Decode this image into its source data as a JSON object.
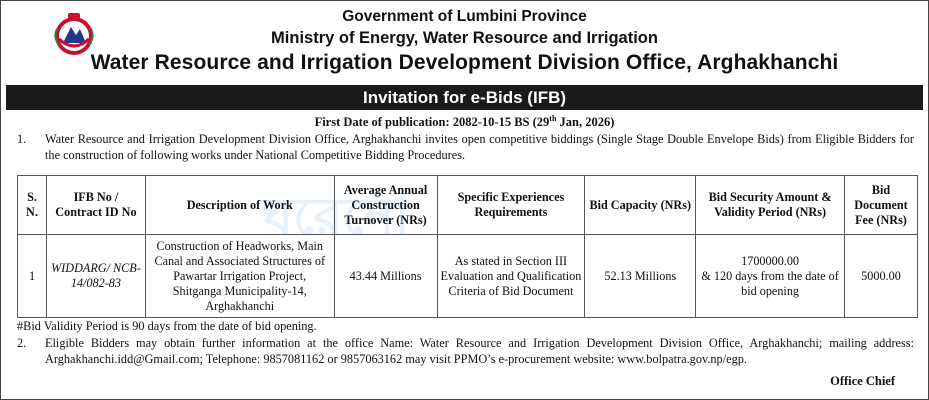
{
  "header": {
    "line1": "Government of Lumbini Province",
    "line2": "Ministry of Energy, Water Resource and Irrigation",
    "line3": "Water Resource and Irrigation Development Division Office, Arghakhanchi",
    "emblem_icon": "nepal-government-emblem-icon"
  },
  "title_band": "Invitation for e-Bids (IFB)",
  "publication": "First Date of publication: 2082-10-15 BS (29th Jan, 2026)",
  "para1": {
    "num": "1.",
    "text": "Water Resource and Irrigation Development Division Office, Arghakhanchi invites open competitive biddings (Single Stage Double Envelope Bids) from Eligible Bidders for the construction of following works under National Competitive Bidding Procedures."
  },
  "table": {
    "headers": {
      "sn": "S. N.",
      "ifb": "IFB No / Contract ID No",
      "desc": "Description of Work",
      "turnover": "Average Annual Construction Turnover (NRs)",
      "experience": "Specific Experiences Requirements",
      "capacity": "Bid Capacity (NRs)",
      "security": "Bid Security Amount & Validity Period (NRs)",
      "fee": "Bid Document Fee (NRs)"
    },
    "rows": [
      {
        "sn": "1",
        "ifb": "WIDDARG/ NCB-14/082-83",
        "desc": "Construction of Headworks, Main Canal and Associated Structures of Pawartar Irrigation Project, Shitganga Municipality-14, Arghakhanchi",
        "turnover": "43.44 Millions",
        "experience": "As stated in Section III Evaluation and Qualification Criteria of Bid Document",
        "capacity": "52.13 Millions",
        "security_amount": "1700000.00",
        "security_validity": "& 120 days from the date of bid opening",
        "fee": "5000.00"
      }
    ]
  },
  "validity_note": "#Bid Validity Period is 90 days from the date of bid opening.",
  "para2": {
    "num": "2.",
    "text": "Eligible Bidders may obtain further information at the office Name: Water Resource and Irrigation Development Division Office, Arghakhanchi; mailing address: Arghakhanchi.idd@Gmail.com; Telephone: 9857081162 or 9857063162 may visit PPMO’s e-procurement website: www.bolpatra.gov.np/egp."
  },
  "signature": "Office Chief",
  "watermark_text": "ঘরেনো",
  "colors": {
    "band_bg": "#1a1a1a",
    "band_text": "#ffffff",
    "emblem_red": "#c8102e",
    "emblem_blue": "#1e3a8a"
  }
}
